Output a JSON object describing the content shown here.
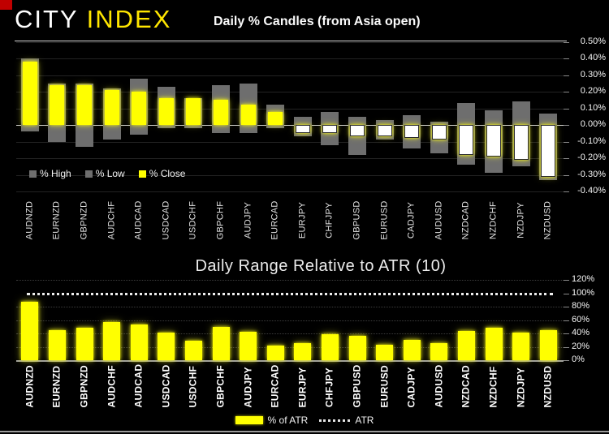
{
  "header": {
    "logo_city": "CITY",
    "logo_index": "INDEX"
  },
  "colors": {
    "background": "#000000",
    "accent_yellow": "#ffff00",
    "logo_yellow": "#ffe600",
    "bar_gray": "#6e6e6e",
    "negative_close_white": "#ffffff",
    "corner_red": "#c00000"
  },
  "chart_data": [
    {
      "type": "bar",
      "title": "Daily % Candles (from Asia open)",
      "categories": [
        "AUDNZD",
        "EURNZD",
        "GBPNZD",
        "AUDCHF",
        "AUDCAD",
        "USDCAD",
        "USDCHF",
        "GBPCHF",
        "AUDJPY",
        "EURCAD",
        "EURJPY",
        "CHFJPY",
        "GBPUSD",
        "EURUSD",
        "CADJPY",
        "AUDUSD",
        "NZDCAD",
        "NZDCHF",
        "NZDJPY",
        "NZDUSD"
      ],
      "series": [
        {
          "name": "% High",
          "color": "#6e6e6e",
          "values": [
            0.4,
            0.25,
            0.25,
            0.22,
            0.28,
            0.23,
            0.16,
            0.24,
            0.25,
            0.12,
            0.05,
            0.08,
            0.05,
            0.03,
            0.06,
            0.02,
            0.13,
            0.09,
            0.14,
            0.07
          ]
        },
        {
          "name": "% Low",
          "color": "#6e6e6e",
          "values": [
            -0.04,
            -0.1,
            -0.13,
            -0.09,
            -0.06,
            -0.02,
            -0.02,
            -0.05,
            -0.05,
            -0.02,
            -0.07,
            -0.12,
            -0.18,
            -0.09,
            -0.14,
            -0.17,
            -0.24,
            -0.29,
            -0.25,
            -0.33
          ]
        },
        {
          "name": "% Close",
          "color": "#ffff00",
          "color_negative": "#ffffff",
          "values": [
            0.38,
            0.24,
            0.24,
            0.21,
            0.2,
            0.16,
            0.16,
            0.15,
            0.12,
            0.08,
            -0.05,
            -0.05,
            -0.07,
            -0.07,
            -0.08,
            -0.09,
            -0.18,
            -0.19,
            -0.21,
            -0.31
          ]
        }
      ],
      "ylim": [
        -0.4,
        0.5
      ],
      "ytick_step": 0.1,
      "ytick_format": "percent_2dp",
      "grid": true,
      "legend_position": "bottom-left-inside",
      "legend_labels": [
        "% High",
        "% Low",
        "% Close"
      ]
    },
    {
      "type": "bar",
      "title": "Daily Range Relative to ATR (10)",
      "categories": [
        "AUDNZD",
        "EURNZD",
        "GBPNZD",
        "AUDCHF",
        "AUDCAD",
        "USDCAD",
        "USDCHF",
        "GBPCHF",
        "AUDJPY",
        "EURCAD",
        "EURJPY",
        "CHFJPY",
        "GBPUSD",
        "EURUSD",
        "CADJPY",
        "AUDUSD",
        "NZDCAD",
        "NZDCHF",
        "NZDJPY",
        "NZDUSD"
      ],
      "series": [
        {
          "name": "% of ATR",
          "color": "#ffff00",
          "values": [
            88,
            45,
            48,
            57,
            53,
            41,
            29,
            50,
            43,
            22,
            26,
            39,
            37,
            23,
            30,
            25,
            44,
            48,
            41,
            45
          ]
        }
      ],
      "reference_line": {
        "name": "ATR",
        "value": 100,
        "style": "dotted",
        "color": "#f2f2f2"
      },
      "ylim": [
        0,
        120
      ],
      "ytick_step": 20,
      "ytick_format": "percent_0dp",
      "grid": "dotted",
      "legend_position": "bottom-center"
    }
  ]
}
